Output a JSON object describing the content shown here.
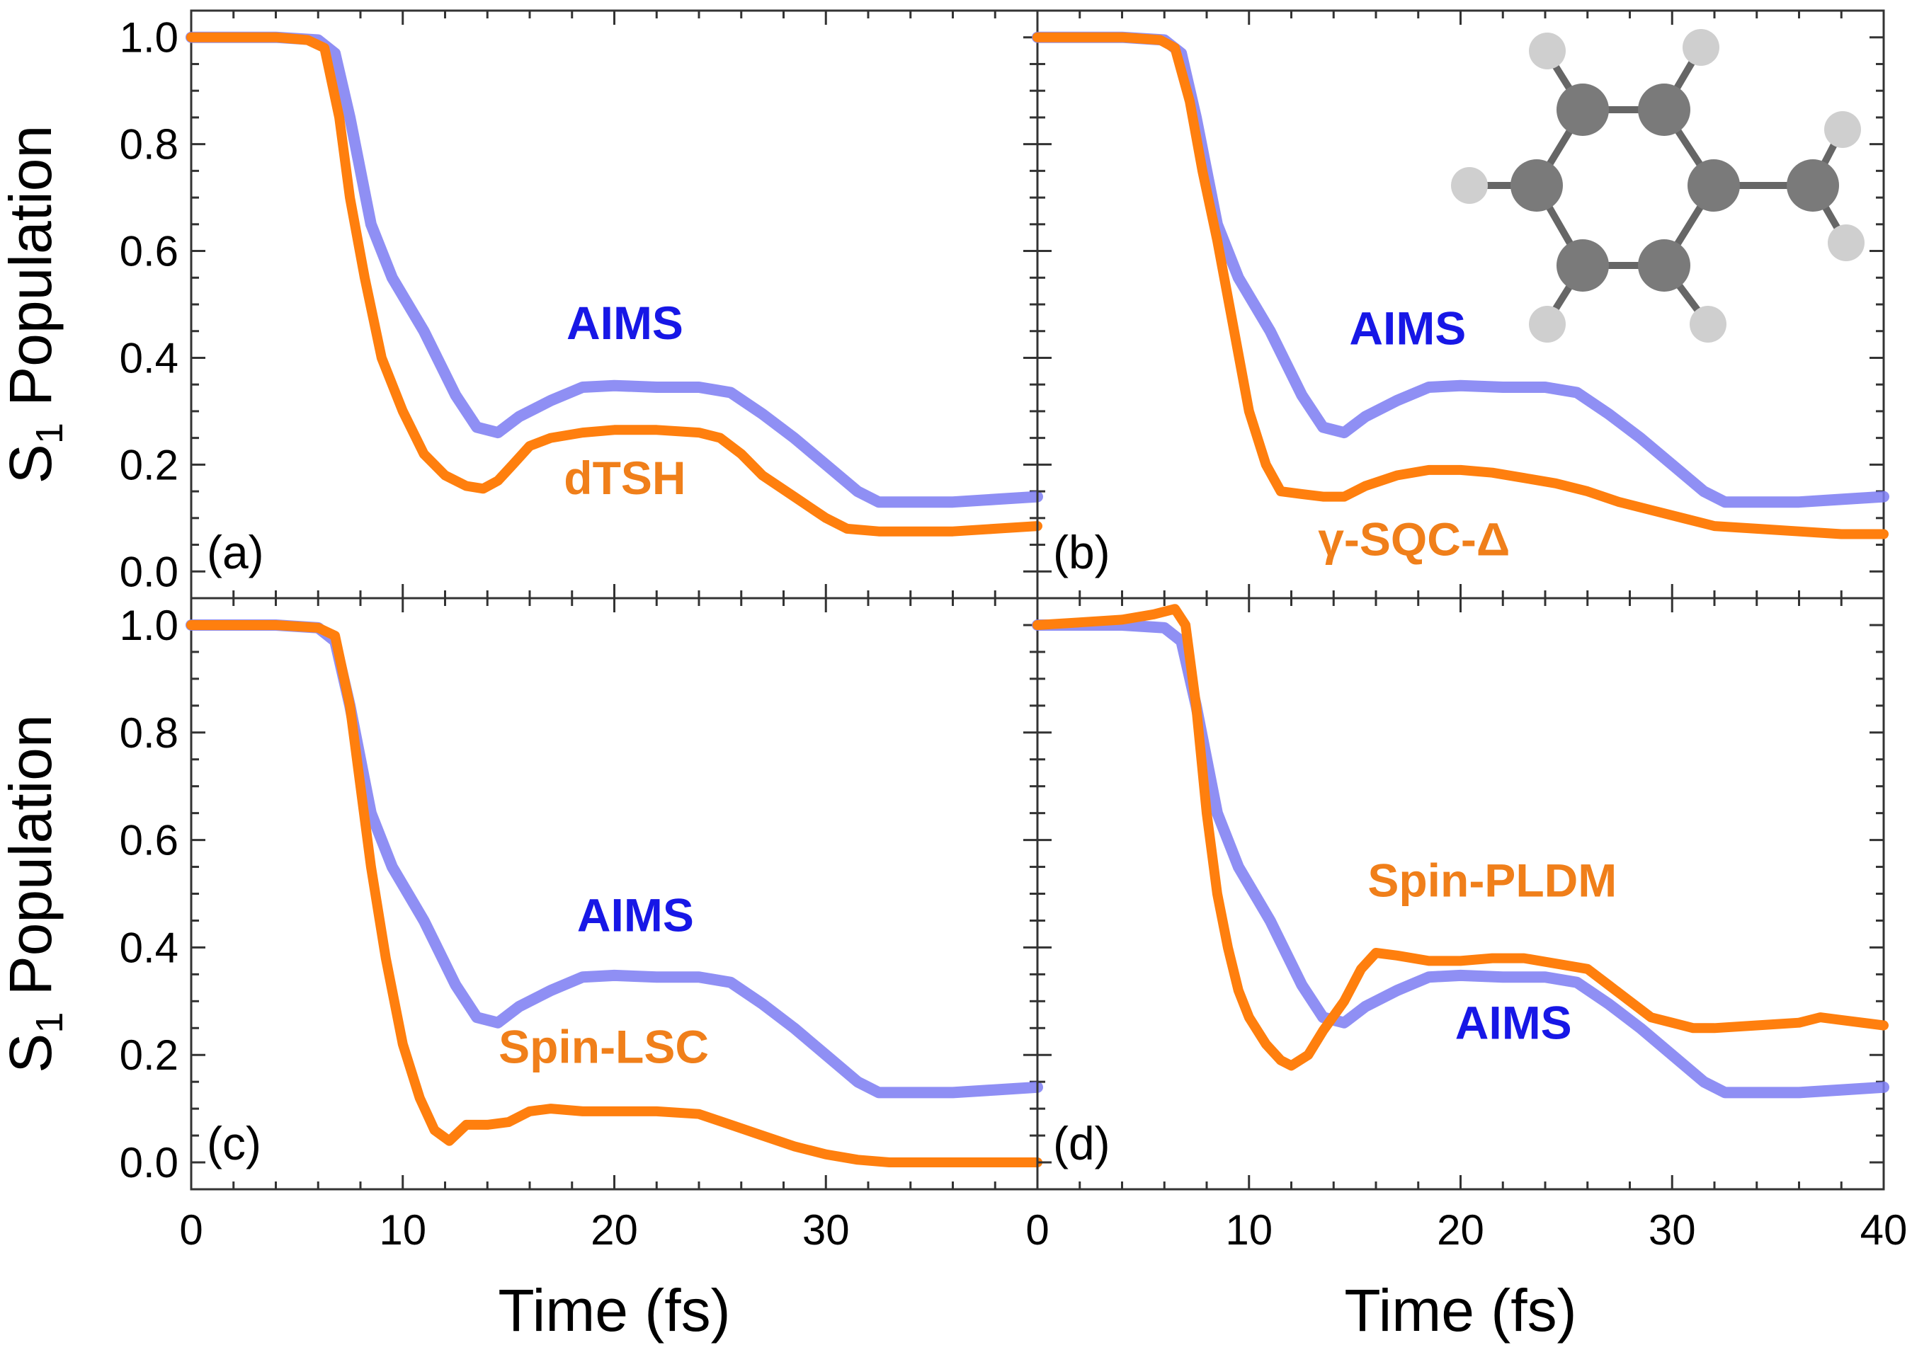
{
  "colors": {
    "aims": "#7b7bf2",
    "method": "#ff7f0e",
    "aims_label": "#1717e6",
    "method_label": "#f07f1a",
    "atom_dark": "#7a7a7a",
    "atom_light": "#cfcfcf",
    "bond": "#666666"
  },
  "chart_data": [
    {
      "type": "line",
      "panel_label": "(a)",
      "ylabel_main": "S",
      "ylabel_sub": "1",
      "ylabel_rest": " Population",
      "xlim": [
        0,
        40
      ],
      "ylim": [
        -0.05,
        1.05
      ],
      "yticks": [
        "0.0",
        "0.2",
        "0.4",
        "0.6",
        "0.8",
        "1.0"
      ],
      "series": [
        {
          "name": "AIMS",
          "x": [
            0,
            4,
            6,
            6.8,
            7.5,
            8.5,
            9.5,
            11,
            12.5,
            13.5,
            14.5,
            15.5,
            17,
            18.5,
            20,
            22,
            24,
            25.5,
            27,
            28.5,
            30,
            31.5,
            32.5,
            34,
            36,
            38,
            40
          ],
          "y": [
            1.0,
            1.0,
            0.995,
            0.97,
            0.85,
            0.65,
            0.55,
            0.45,
            0.33,
            0.27,
            0.26,
            0.29,
            0.32,
            0.345,
            0.348,
            0.345,
            0.345,
            0.335,
            0.295,
            0.25,
            0.2,
            0.15,
            0.13,
            0.13,
            0.13,
            0.135,
            0.14
          ]
        },
        {
          "name": "dTSH",
          "x": [
            0,
            4,
            5.5,
            6.3,
            7,
            7.5,
            8.2,
            9,
            10,
            11,
            12,
            13,
            13.8,
            14.5,
            15.2,
            16,
            17,
            18.5,
            20,
            22,
            24,
            25,
            26,
            27,
            28.5,
            30,
            31,
            32.5,
            34,
            36,
            38,
            40
          ],
          "y": [
            1.0,
            1.0,
            0.995,
            0.98,
            0.85,
            0.7,
            0.55,
            0.4,
            0.3,
            0.22,
            0.18,
            0.16,
            0.155,
            0.17,
            0.2,
            0.235,
            0.25,
            0.26,
            0.265,
            0.265,
            0.26,
            0.25,
            0.22,
            0.18,
            0.14,
            0.1,
            0.08,
            0.075,
            0.075,
            0.075,
            0.08,
            0.085
          ]
        }
      ],
      "labels": [
        {
          "series": "AIMS",
          "text": "AIMS",
          "x": 20.5,
          "y": 0.435
        },
        {
          "series": "dTSH",
          "text": "dTSH",
          "x": 20.5,
          "y": 0.145
        }
      ]
    },
    {
      "type": "line",
      "panel_label": "(b)",
      "xlim": [
        0,
        40
      ],
      "ylim": [
        -0.05,
        1.05
      ],
      "series": [
        {
          "name": "AIMS",
          "x": [
            0,
            4,
            6,
            6.8,
            7.5,
            8.5,
            9.5,
            11,
            12.5,
            13.5,
            14.5,
            15.5,
            17,
            18.5,
            20,
            22,
            24,
            25.5,
            27,
            28.5,
            30,
            31.5,
            32.5,
            34,
            36,
            38,
            40
          ],
          "y": [
            1.0,
            1.0,
            0.995,
            0.97,
            0.85,
            0.65,
            0.55,
            0.45,
            0.33,
            0.27,
            0.26,
            0.29,
            0.32,
            0.345,
            0.348,
            0.345,
            0.345,
            0.335,
            0.295,
            0.25,
            0.2,
            0.15,
            0.13,
            0.13,
            0.13,
            0.135,
            0.14
          ]
        },
        {
          "name": "γ-SQC-Δ",
          "x": [
            0,
            4,
            5.8,
            6.5,
            7.2,
            7.8,
            8.5,
            9.3,
            10,
            10.8,
            11.5,
            12.5,
            13.5,
            14.5,
            15.5,
            17,
            18.5,
            20,
            21.5,
            23,
            24.5,
            26,
            27.5,
            29,
            30.5,
            32,
            34,
            36,
            38,
            40
          ],
          "y": [
            1.0,
            1.0,
            0.995,
            0.98,
            0.88,
            0.75,
            0.62,
            0.45,
            0.3,
            0.2,
            0.15,
            0.145,
            0.14,
            0.14,
            0.16,
            0.18,
            0.19,
            0.19,
            0.185,
            0.175,
            0.165,
            0.15,
            0.13,
            0.115,
            0.1,
            0.085,
            0.08,
            0.075,
            0.07,
            0.07
          ]
        }
      ],
      "labels": [
        {
          "series": "AIMS",
          "text": "AIMS",
          "x": 17.5,
          "y": 0.425
        },
        {
          "series": "γ-SQC-Δ",
          "text": "γ-SQC-Δ",
          "x": 17.8,
          "y": 0.03
        }
      ]
    },
    {
      "type": "line",
      "panel_label": "(c)",
      "ylabel_main": "S",
      "ylabel_sub": "1",
      "ylabel_rest": " Population",
      "xlim": [
        0,
        40
      ],
      "ylim": [
        -0.05,
        1.05
      ],
      "yticks": [
        "0.0",
        "0.2",
        "0.4",
        "0.6",
        "0.8",
        "1.0"
      ],
      "xticks": [
        "0",
        "10",
        "20",
        "30"
      ],
      "xlabel": "Time (fs)",
      "series": [
        {
          "name": "AIMS",
          "x": [
            0,
            4,
            6,
            6.8,
            7.5,
            8.5,
            9.5,
            11,
            12.5,
            13.5,
            14.5,
            15.5,
            17,
            18.5,
            20,
            22,
            24,
            25.5,
            27,
            28.5,
            30,
            31.5,
            32.5,
            34,
            36,
            38,
            40
          ],
          "y": [
            1.0,
            1.0,
            0.995,
            0.97,
            0.85,
            0.65,
            0.55,
            0.45,
            0.33,
            0.27,
            0.26,
            0.29,
            0.32,
            0.345,
            0.348,
            0.345,
            0.345,
            0.335,
            0.295,
            0.25,
            0.2,
            0.15,
            0.13,
            0.13,
            0.13,
            0.135,
            0.14
          ]
        },
        {
          "name": "Spin-LSC",
          "x": [
            0,
            4,
            6,
            6.8,
            7.5,
            8,
            8.5,
            9.2,
            10,
            10.8,
            11.5,
            12.2,
            13,
            14,
            15,
            16,
            17,
            18.5,
            20,
            22,
            24,
            25.5,
            27,
            28.5,
            30,
            31.5,
            33,
            35,
            37,
            40
          ],
          "y": [
            1.0,
            1.0,
            0.995,
            0.98,
            0.85,
            0.7,
            0.55,
            0.38,
            0.22,
            0.12,
            0.06,
            0.04,
            0.07,
            0.07,
            0.075,
            0.095,
            0.1,
            0.095,
            0.095,
            0.095,
            0.09,
            0.07,
            0.05,
            0.03,
            0.015,
            0.005,
            0.0,
            0.0,
            0.0,
            0.0
          ]
        }
      ],
      "labels": [
        {
          "series": "AIMS",
          "text": "AIMS",
          "x": 21,
          "y": 0.43
        },
        {
          "series": "Spin-LSC",
          "text": "Spin-LSC",
          "x": 19.5,
          "y": 0.185
        }
      ]
    },
    {
      "type": "line",
      "panel_label": "(d)",
      "xlim": [
        0,
        40
      ],
      "ylim": [
        -0.05,
        1.05
      ],
      "xticks": [
        "0",
        "10",
        "20",
        "30",
        "40"
      ],
      "xlabel": "Time (fs)",
      "series": [
        {
          "name": "AIMS",
          "x": [
            0,
            4,
            6,
            6.8,
            7.5,
            8.5,
            9.5,
            11,
            12.5,
            13.5,
            14.5,
            15.5,
            17,
            18.5,
            20,
            22,
            24,
            25.5,
            27,
            28.5,
            30,
            31.5,
            32.5,
            34,
            36,
            38,
            40
          ],
          "y": [
            1.0,
            1.0,
            0.995,
            0.97,
            0.85,
            0.65,
            0.55,
            0.45,
            0.33,
            0.27,
            0.26,
            0.29,
            0.32,
            0.345,
            0.348,
            0.345,
            0.345,
            0.335,
            0.295,
            0.25,
            0.2,
            0.15,
            0.13,
            0.13,
            0.13,
            0.135,
            0.14
          ]
        },
        {
          "name": "Spin-PLDM",
          "x": [
            0,
            2,
            4,
            5.5,
            6.5,
            7,
            7.5,
            8,
            8.5,
            9,
            9.5,
            10,
            10.8,
            11.5,
            12,
            12.8,
            13.5,
            14.5,
            15.3,
            16,
            17,
            18.5,
            20,
            21.5,
            23,
            24.5,
            26,
            27,
            28,
            29,
            30,
            31,
            32,
            34,
            36,
            37,
            38,
            40
          ],
          "y": [
            1.0,
            1.005,
            1.01,
            1.02,
            1.03,
            1.0,
            0.85,
            0.65,
            0.5,
            0.4,
            0.32,
            0.27,
            0.22,
            0.19,
            0.18,
            0.2,
            0.245,
            0.3,
            0.36,
            0.39,
            0.385,
            0.375,
            0.375,
            0.38,
            0.38,
            0.37,
            0.36,
            0.33,
            0.3,
            0.27,
            0.26,
            0.25,
            0.25,
            0.255,
            0.26,
            0.27,
            0.265,
            0.255
          ]
        }
      ],
      "labels": [
        {
          "series": "Spin-PLDM",
          "text": "Spin-PLDM",
          "x": 21.5,
          "y": 0.495
        },
        {
          "series": "AIMS",
          "text": "AIMS",
          "x": 22.5,
          "y": 0.23
        }
      ]
    }
  ]
}
